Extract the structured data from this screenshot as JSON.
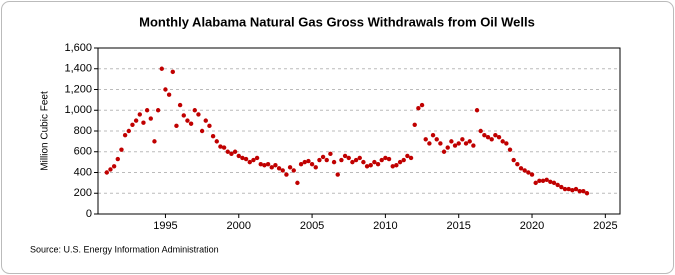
{
  "chart_data": {
    "type": "scatter",
    "title": "Monthly Alabama Natural Gas Gross Withdrawals from Oil Wells",
    "y_label": "Million Cubic Feet",
    "source": "Source: U.S. Energy Information Administration",
    "color": "#c00000",
    "grid": true,
    "xlim": [
      1990.4,
      2026
    ],
    "xticks": [
      1995,
      2000,
      2005,
      2010,
      2015,
      2020,
      2025
    ],
    "ylim": [
      0,
      1600
    ],
    "yticks": [
      0,
      200,
      400,
      600,
      800,
      {
        "value": 1000,
        "label": "1,000"
      },
      {
        "value": 1200,
        "label": "1,200"
      },
      {
        "value": 1400,
        "label": "1,400"
      },
      {
        "value": 1600,
        "label": "1,600"
      }
    ],
    "x": [
      1991.0,
      1991.25,
      1991.5,
      1991.75,
      1992.0,
      1992.25,
      1992.5,
      1992.75,
      1993.0,
      1993.25,
      1993.5,
      1993.75,
      1994.0,
      1994.25,
      1994.5,
      1994.75,
      1995.0,
      1995.25,
      1995.5,
      1995.75,
      1996.0,
      1996.25,
      1996.5,
      1996.75,
      1997.0,
      1997.25,
      1997.5,
      1997.75,
      1998.0,
      1998.25,
      1998.5,
      1998.75,
      1999.0,
      1999.25,
      1999.5,
      1999.75,
      2000.0,
      2000.25,
      2000.5,
      2000.75,
      2001.0,
      2001.25,
      2001.5,
      2001.75,
      2002.0,
      2002.25,
      2002.5,
      2002.75,
      2003.0,
      2003.25,
      2003.5,
      2003.75,
      2004.0,
      2004.25,
      2004.5,
      2004.75,
      2005.0,
      2005.25,
      2005.5,
      2005.75,
      2006.0,
      2006.25,
      2006.5,
      2006.75,
      2007.0,
      2007.25,
      2007.5,
      2007.75,
      2008.0,
      2008.25,
      2008.5,
      2008.75,
      2009.0,
      2009.25,
      2009.5,
      2009.75,
      2010.0,
      2010.25,
      2010.5,
      2010.75,
      2011.0,
      2011.25,
      2011.5,
      2011.75,
      2012.0,
      2012.25,
      2012.5,
      2012.75,
      2013.0,
      2013.25,
      2013.5,
      2013.75,
      2014.0,
      2014.25,
      2014.5,
      2014.75,
      2015.0,
      2015.25,
      2015.5,
      2015.75,
      2016.0,
      2016.25,
      2016.5,
      2016.75,
      2017.0,
      2017.25,
      2017.5,
      2017.75,
      2018.0,
      2018.25,
      2018.5,
      2018.75,
      2019.0,
      2019.25,
      2019.5,
      2019.75,
      2020.0,
      2020.25,
      2020.5,
      2020.75,
      2021.0,
      2021.25,
      2021.5,
      2021.75,
      2022.0,
      2022.25,
      2022.5,
      2022.75,
      2023.0,
      2023.25,
      2023.5,
      2023.75
    ],
    "values": [
      400,
      430,
      460,
      530,
      620,
      760,
      800,
      860,
      900,
      960,
      880,
      1000,
      920,
      700,
      1000,
      1400,
      1200,
      1150,
      1370,
      850,
      1050,
      950,
      900,
      870,
      1000,
      960,
      800,
      900,
      850,
      750,
      700,
      650,
      640,
      600,
      580,
      600,
      560,
      540,
      530,
      500,
      520,
      540,
      480,
      470,
      480,
      450,
      470,
      440,
      420,
      380,
      450,
      420,
      300,
      480,
      500,
      510,
      480,
      450,
      520,
      550,
      520,
      580,
      500,
      380,
      520,
      560,
      540,
      500,
      520,
      540,
      500,
      460,
      470,
      500,
      480,
      520,
      540,
      530,
      460,
      470,
      500,
      520,
      560,
      540,
      860,
      1020,
      1050,
      720,
      680,
      760,
      720,
      680,
      600,
      640,
      700,
      660,
      680,
      720,
      680,
      700,
      660,
      1000,
      800,
      760,
      740,
      720,
      760,
      740,
      700,
      680,
      620,
      520,
      480,
      440,
      420,
      400,
      380,
      300,
      320,
      320,
      330,
      310,
      300,
      280,
      260,
      240,
      240,
      230,
      240,
      220,
      220,
      200
    ]
  }
}
